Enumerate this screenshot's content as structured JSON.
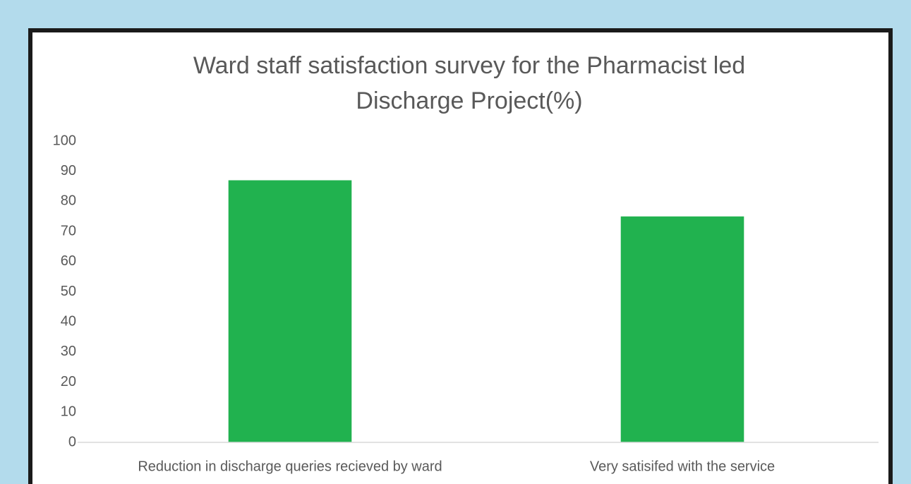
{
  "chart_data": {
    "type": "bar",
    "title": "Ward staff satisfaction survey for the Pharmacist led Discharge Project(%)",
    "categories": [
      "Reduction in discharge queries recieved by ward",
      "Very satisifed with the service"
    ],
    "values": [
      87,
      75
    ],
    "color": "#21b24f",
    "ylim": [
      0,
      100
    ],
    "yticks": [
      0,
      10,
      20,
      30,
      40,
      50,
      60,
      70,
      80,
      90,
      100
    ],
    "grid": false
  }
}
